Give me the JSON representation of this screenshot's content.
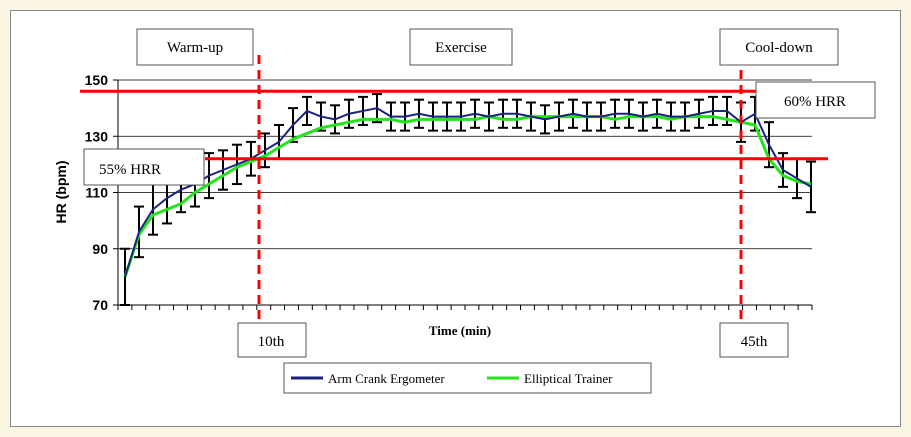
{
  "colors": {
    "background": "#fbf6e3",
    "arm_crank": "#1a237e",
    "elliptical": "#22e31c",
    "threshold": "#ff0000",
    "error_bars": "#000000"
  },
  "phases": {
    "warmup": "Warm-up",
    "exercise": "Exercise",
    "cooldown": "Cool-down"
  },
  "markers": {
    "m10": "10th",
    "m45": "45th"
  },
  "thresholds": {
    "hrr60": {
      "label": "60% HRR",
      "value": 146
    },
    "hrr55": {
      "label": "55% HRR",
      "value": 122
    }
  },
  "chart_data": {
    "type": "line",
    "title": "",
    "xlabel": "Time (min)",
    "ylabel": "HR (bpm)",
    "ylim": [
      70,
      150
    ],
    "yticks": [
      70,
      90,
      110,
      130,
      150
    ],
    "grid": "horizontal",
    "legend_position": "bottom",
    "x": [
      1,
      2,
      3,
      4,
      5,
      6,
      7,
      8,
      9,
      10,
      11,
      12,
      13,
      14,
      15,
      16,
      17,
      18,
      19,
      20,
      21,
      22,
      23,
      24,
      25,
      26,
      27,
      28,
      29,
      30,
      31,
      32,
      33,
      34,
      35,
      36,
      37,
      38,
      39,
      40,
      41,
      42,
      43,
      44,
      45,
      46,
      47,
      48,
      49,
      50
    ],
    "series": [
      {
        "name": "Arm Crank Ergometer",
        "values": [
          80,
          96,
          104,
          108,
          111,
          113,
          116,
          118,
          120,
          122,
          125,
          128,
          134,
          139,
          137,
          136,
          138,
          139,
          140,
          137,
          137,
          138,
          137,
          137,
          137,
          138,
          137,
          138,
          138,
          137,
          136,
          137,
          138,
          137,
          137,
          138,
          138,
          137,
          138,
          137,
          137,
          138,
          139,
          139,
          135,
          138,
          127,
          118,
          115,
          112
        ],
        "errors": [
          10,
          9,
          9,
          9,
          8,
          8,
          8,
          7,
          7,
          6,
          6,
          6,
          6,
          5,
          5,
          5,
          5,
          5,
          5,
          5,
          5,
          5,
          5,
          5,
          5,
          5,
          5,
          5,
          5,
          5,
          5,
          5,
          5,
          5,
          5,
          5,
          5,
          5,
          5,
          5,
          5,
          5,
          5,
          5,
          7,
          6,
          8,
          6,
          7,
          9
        ]
      },
      {
        "name": "Elliptical Trainer",
        "values": [
          80,
          95,
          102,
          104,
          106,
          110,
          113,
          116,
          119,
          121,
          123,
          126,
          129,
          131,
          133,
          134,
          135,
          136,
          136,
          136,
          135,
          136,
          136,
          136,
          136,
          136,
          137,
          136,
          136,
          137,
          137,
          137,
          137,
          137,
          137,
          136,
          137,
          137,
          137,
          136,
          137,
          137,
          137,
          136,
          135,
          134,
          122,
          116,
          114,
          113
        ],
        "errors": []
      }
    ]
  }
}
